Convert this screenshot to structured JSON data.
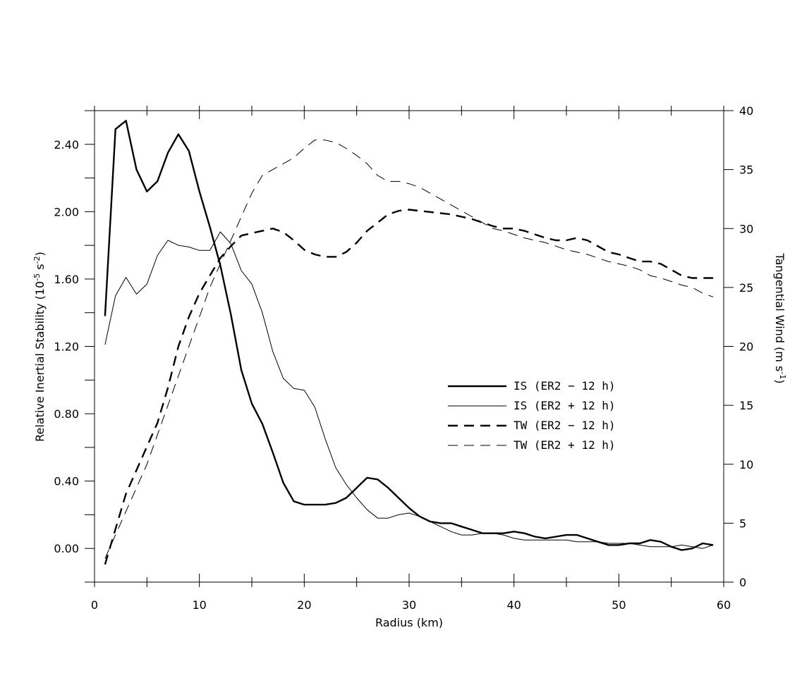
{
  "chart_data": {
    "type": "line",
    "xlabel": "Radius (km)",
    "ylabel_left": "Relative Inertial Stability (10",
    "ylabel_left_exp1": "-5",
    "ylabel_left_mid": " s",
    "ylabel_left_exp2": "-2",
    "ylabel_left_end": ")",
    "ylabel_right": "Tangential Wind (m s",
    "ylabel_right_exp": "-1",
    "ylabel_right_end": ")",
    "xlim": [
      0,
      60
    ],
    "ylim_left": [
      -0.2,
      2.6
    ],
    "ylim_right": [
      0,
      40
    ],
    "x_ticks": [
      0,
      10,
      20,
      30,
      40,
      50,
      60
    ],
    "x_tick_labels": [
      "0",
      "10",
      "20",
      "30",
      "40",
      "50",
      "60"
    ],
    "left_ticks": [
      0.0,
      0.4,
      0.8,
      1.2,
      1.6,
      2.0,
      2.4
    ],
    "left_tick_labels": [
      "0.00",
      "0.40",
      "0.80",
      "1.20",
      "1.60",
      "2.00",
      "2.40"
    ],
    "right_ticks": [
      0,
      5,
      10,
      15,
      20,
      25,
      30,
      35,
      40
    ],
    "right_tick_labels": [
      "0",
      "5",
      "10",
      "15",
      "20",
      "25",
      "30",
      "35",
      "40"
    ],
    "grid": false,
    "legend_position": "center-right",
    "series": [
      {
        "name": "IS (ER2 − 12 h)",
        "axis": "left",
        "style": "solid-thick",
        "x": [
          1,
          2,
          3,
          4,
          5,
          6,
          7,
          8,
          9,
          10,
          11,
          12,
          13,
          14,
          15,
          16,
          17,
          18,
          19,
          20,
          21,
          22,
          23,
          24,
          25,
          26,
          27,
          28,
          29,
          30,
          31,
          32,
          33,
          34,
          35,
          36,
          37,
          38,
          39,
          40,
          41,
          42,
          43,
          44,
          45,
          46,
          47,
          48,
          49,
          50,
          51,
          52,
          53,
          54,
          55,
          56,
          57,
          58,
          59
        ],
        "values": [
          1.38,
          2.49,
          2.54,
          2.25,
          2.12,
          2.18,
          2.35,
          2.46,
          2.36,
          2.12,
          1.91,
          1.68,
          1.39,
          1.06,
          0.86,
          0.74,
          0.57,
          0.39,
          0.28,
          0.26,
          0.26,
          0.26,
          0.27,
          0.3,
          0.36,
          0.42,
          0.41,
          0.36,
          0.3,
          0.24,
          0.19,
          0.16,
          0.15,
          0.15,
          0.13,
          0.11,
          0.09,
          0.09,
          0.09,
          0.1,
          0.09,
          0.07,
          0.06,
          0.07,
          0.08,
          0.08,
          0.06,
          0.04,
          0.02,
          0.02,
          0.03,
          0.03,
          0.05,
          0.04,
          0.01,
          -0.01,
          0.0,
          0.03,
          0.02
        ]
      },
      {
        "name": "IS (ER2 + 12 h)",
        "axis": "left",
        "style": "solid-thin",
        "x": [
          1,
          2,
          3,
          4,
          5,
          6,
          7,
          8,
          9,
          10,
          11,
          12,
          13,
          14,
          15,
          16,
          17,
          18,
          19,
          20,
          21,
          22,
          23,
          24,
          25,
          26,
          27,
          28,
          29,
          30,
          31,
          32,
          33,
          34,
          35,
          36,
          37,
          38,
          39,
          40,
          41,
          42,
          43,
          44,
          45,
          46,
          47,
          48,
          49,
          50,
          51,
          52,
          53,
          54,
          55,
          56,
          57,
          58,
          59
        ],
        "values": [
          1.21,
          1.5,
          1.61,
          1.51,
          1.57,
          1.74,
          1.83,
          1.8,
          1.79,
          1.77,
          1.77,
          1.88,
          1.81,
          1.65,
          1.57,
          1.4,
          1.17,
          1.01,
          0.95,
          0.94,
          0.84,
          0.65,
          0.48,
          0.38,
          0.3,
          0.23,
          0.18,
          0.18,
          0.2,
          0.21,
          0.19,
          0.16,
          0.13,
          0.1,
          0.08,
          0.08,
          0.09,
          0.09,
          0.08,
          0.06,
          0.05,
          0.05,
          0.05,
          0.05,
          0.05,
          0.04,
          0.04,
          0.04,
          0.03,
          0.03,
          0.03,
          0.02,
          0.01,
          0.01,
          0.01,
          0.02,
          0.01,
          0.0,
          0.02
        ]
      },
      {
        "name": "TW (ER2 − 12 h)",
        "axis": "right",
        "style": "dashed-thick",
        "x": [
          1,
          2,
          3,
          4,
          5,
          6,
          7,
          8,
          9,
          10,
          11,
          12,
          13,
          14,
          15,
          16,
          17,
          18,
          19,
          20,
          21,
          22,
          23,
          24,
          25,
          26,
          27,
          28,
          29,
          30,
          31,
          32,
          33,
          34,
          35,
          36,
          37,
          38,
          39,
          40,
          41,
          42,
          43,
          44,
          45,
          46,
          47,
          48,
          49,
          50,
          51,
          52,
          53,
          54,
          55,
          56,
          57,
          58,
          59
        ],
        "values": [
          1.5,
          4.5,
          7.5,
          9.5,
          11.5,
          13.5,
          16.5,
          20.0,
          22.5,
          24.5,
          26.0,
          27.5,
          28.5,
          29.4,
          29.6,
          29.8,
          30.0,
          29.7,
          29.0,
          28.2,
          27.8,
          27.6,
          27.6,
          28.0,
          28.8,
          29.8,
          30.5,
          31.2,
          31.5,
          31.6,
          31.5,
          31.4,
          31.3,
          31.2,
          31.0,
          30.8,
          30.5,
          30.2,
          30.0,
          30.0,
          29.8,
          29.5,
          29.2,
          29.0,
          29.0,
          29.2,
          29.0,
          28.5,
          28.0,
          27.8,
          27.5,
          27.2,
          27.2,
          27.0,
          26.5,
          26.0,
          25.8,
          25.8,
          25.8
        ]
      },
      {
        "name": "TW (ER2 + 12 h)",
        "axis": "right",
        "style": "dashed-thin",
        "x": [
          1,
          2,
          3,
          4,
          5,
          6,
          7,
          8,
          9,
          10,
          11,
          12,
          13,
          14,
          15,
          16,
          17,
          18,
          19,
          20,
          21,
          22,
          23,
          24,
          25,
          26,
          27,
          28,
          29,
          30,
          31,
          32,
          33,
          34,
          35,
          36,
          37,
          38,
          39,
          40,
          41,
          42,
          43,
          44,
          45,
          46,
          47,
          48,
          49,
          50,
          51,
          52,
          53,
          54,
          55,
          56,
          57,
          58,
          59
        ],
        "values": [
          2.0,
          4.0,
          6.0,
          8.0,
          10.0,
          12.5,
          15.0,
          17.5,
          20.0,
          22.5,
          25.0,
          27.0,
          29.0,
          31.0,
          33.0,
          34.5,
          35.0,
          35.5,
          36.0,
          36.8,
          37.5,
          37.5,
          37.3,
          36.8,
          36.2,
          35.5,
          34.5,
          34.0,
          34.0,
          33.8,
          33.5,
          33.0,
          32.5,
          32.0,
          31.5,
          31.0,
          30.5,
          30.0,
          29.8,
          29.5,
          29.2,
          29.0,
          28.8,
          28.5,
          28.2,
          28.0,
          27.8,
          27.5,
          27.2,
          27.0,
          26.8,
          26.5,
          26.0,
          25.8,
          25.5,
          25.2,
          25.0,
          24.5,
          24.2
        ]
      }
    ]
  },
  "colors": {
    "line": "#000000",
    "background": "#ffffff"
  }
}
